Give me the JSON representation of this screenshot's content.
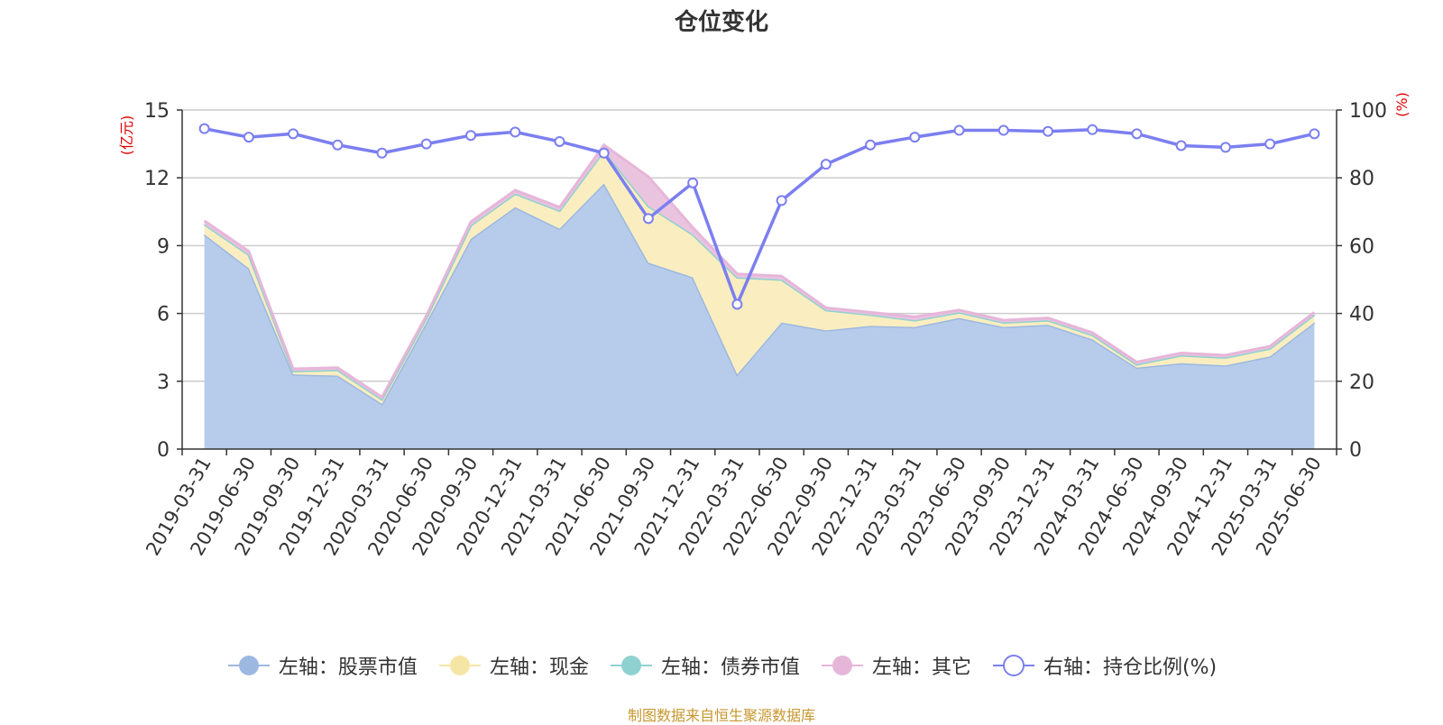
{
  "title": "仓位变化",
  "source_note": "制图数据来自恒生聚源数据库",
  "chart_data": {
    "type": "area",
    "categories": [
      "2019-03-31",
      "2019-06-30",
      "2019-09-30",
      "2019-12-31",
      "2020-03-31",
      "2020-06-30",
      "2020-09-30",
      "2020-12-31",
      "2021-03-31",
      "2021-06-30",
      "2021-09-30",
      "2021-12-31",
      "2022-03-31",
      "2022-06-30",
      "2022-09-30",
      "2022-12-31",
      "2023-03-31",
      "2023-06-30",
      "2023-09-30",
      "2023-12-31",
      "2024-03-31",
      "2024-06-30",
      "2024-09-30",
      "2024-12-31",
      "2025-03-31",
      "2025-06-30"
    ],
    "y_left": {
      "unit": "(亿元)",
      "min": 0,
      "max": 15,
      "ticks": [
        0,
        3,
        6,
        9,
        12,
        15
      ]
    },
    "y_right": {
      "unit": "(%)",
      "min": 0,
      "max": 100,
      "ticks": [
        0,
        20,
        40,
        60,
        80,
        100
      ]
    },
    "series": [
      {
        "name": "左轴：股票市值",
        "axis": "left",
        "kind": "stacked-area",
        "color": "#9db8e0",
        "fill": "#b7cceb",
        "values": [
          9.5,
          8.0,
          3.3,
          3.25,
          2.0,
          5.6,
          9.3,
          10.7,
          9.75,
          11.75,
          8.25,
          7.6,
          3.3,
          5.6,
          5.25,
          5.45,
          5.4,
          5.8,
          5.4,
          5.5,
          4.85,
          3.6,
          3.8,
          3.7,
          4.1,
          5.6
        ]
      },
      {
        "name": "左轴：现金",
        "axis": "left",
        "kind": "stacked-area",
        "color": "#f5e6a5",
        "fill": "#faeec0",
        "values": [
          0.45,
          0.6,
          0.15,
          0.25,
          0.2,
          0.2,
          0.6,
          0.6,
          0.8,
          1.45,
          2.5,
          1.9,
          4.3,
          1.9,
          0.9,
          0.5,
          0.3,
          0.25,
          0.2,
          0.2,
          0.2,
          0.15,
          0.35,
          0.35,
          0.35,
          0.35
        ]
      },
      {
        "name": "左轴：债券市值",
        "axis": "left",
        "kind": "stacked-area",
        "color": "#8fd1d1",
        "fill": "#a8dcdc",
        "values": [
          0,
          0,
          0,
          0,
          0,
          0,
          0,
          0,
          0,
          0,
          0,
          0,
          0,
          0,
          0,
          0,
          0,
          0,
          0,
          0,
          0,
          0,
          0,
          0,
          0,
          0
        ]
      },
      {
        "name": "左轴：其它",
        "axis": "left",
        "kind": "stacked-area",
        "color": "#e6b6d9",
        "fill": "#eac4df",
        "values": [
          0.15,
          0.15,
          0.1,
          0.1,
          0.1,
          0.1,
          0.15,
          0.15,
          0.15,
          0.25,
          1.3,
          0.3,
          0.15,
          0.15,
          0.1,
          0.1,
          0.15,
          0.1,
          0.1,
          0.1,
          0.1,
          0.1,
          0.1,
          0.1,
          0.1,
          0.1
        ]
      },
      {
        "name": "右轴：持仓比例(%)",
        "axis": "right",
        "kind": "line",
        "color": "#7b7ff0",
        "values": [
          94.5,
          92,
          93,
          89.7,
          87.3,
          90,
          92.5,
          93.5,
          90.7,
          87.3,
          68,
          78.5,
          42.7,
          73.3,
          84,
          89.7,
          92,
          94,
          94,
          93.7,
          94.2,
          93,
          89.5,
          89,
          90,
          93
        ]
      }
    ],
    "grid": true,
    "legend_position": "bottom"
  }
}
